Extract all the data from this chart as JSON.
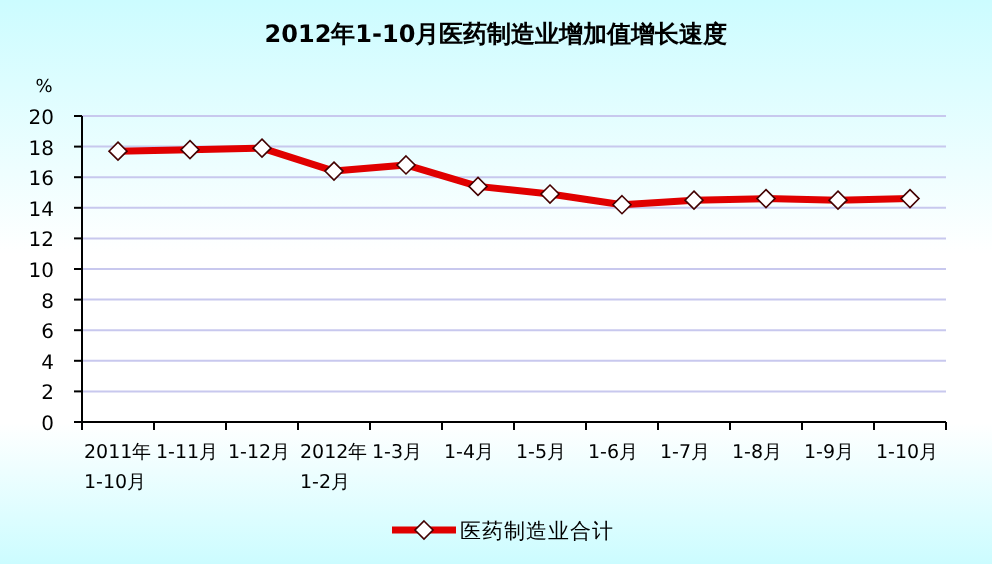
{
  "chart_data": {
    "type": "line",
    "title": "2012年1-10月医药制造业增加值增长速度",
    "ylabel": "%",
    "categories": [
      "2011年1-10月",
      "1-11月",
      "1-12月",
      "2012年1-2月",
      "1-3月",
      "1-4月",
      "1-5月",
      "1-6月",
      "1-7月",
      "1-8月",
      "1-9月",
      "1-10月"
    ],
    "series": [
      {
        "name": "医药制造业合计",
        "color": "#e00000",
        "values": [
          17.7,
          17.8,
          17.9,
          16.4,
          16.8,
          15.4,
          14.9,
          14.2,
          14.5,
          14.6,
          14.5,
          14.6
        ]
      }
    ],
    "ylim": [
      0,
      20
    ],
    "yticks": [
      0,
      2,
      4,
      6,
      8,
      10,
      12,
      14,
      16,
      18,
      20
    ],
    "grid": "y",
    "legend": "bottom",
    "marker": "diamond",
    "line_style": "solid"
  }
}
